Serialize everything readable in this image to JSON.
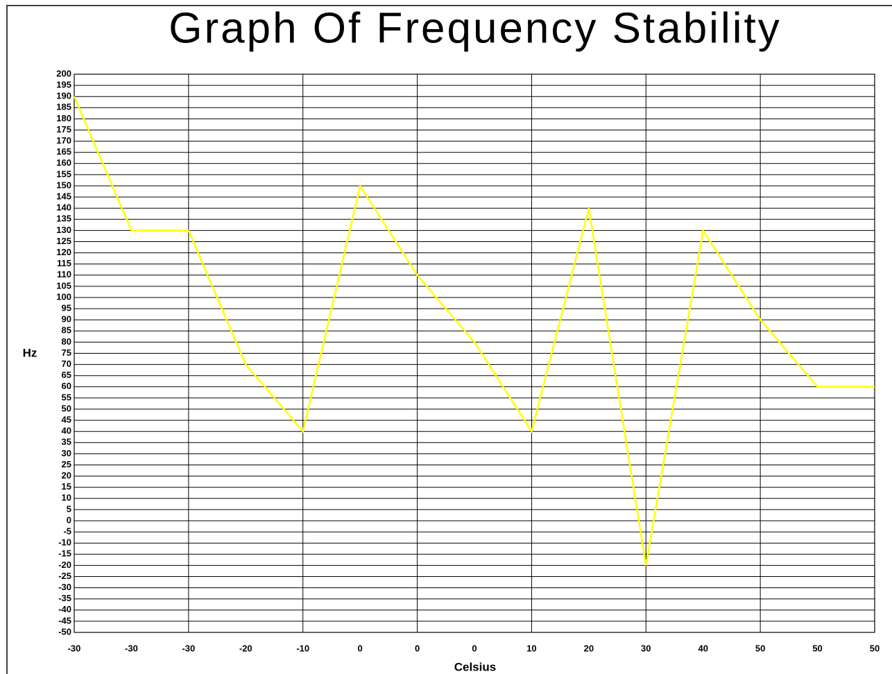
{
  "chart_data": {
    "type": "line",
    "title": "Graph Of Frequency Stability",
    "x_label": "Celsius",
    "y_label": "Hz",
    "categories": [
      "-30",
      "-30",
      "-30",
      "-20",
      "-10",
      "0",
      "0",
      "0",
      "10",
      "20",
      "30",
      "40",
      "50",
      "50",
      "50"
    ],
    "series": [
      {
        "color": "#ffff00",
        "values": [
          190,
          130,
          130,
          70,
          40,
          150,
          110,
          80,
          40,
          140,
          -20,
          130,
          90,
          60,
          60
        ]
      }
    ],
    "ylim": [
      -50,
      200
    ],
    "yticks": [
      -50,
      -45,
      -40,
      -35,
      -30,
      -25,
      -20,
      -15,
      -10,
      -5,
      0,
      5,
      10,
      15,
      20,
      25,
      30,
      35,
      40,
      45,
      50,
      55,
      60,
      65,
      70,
      75,
      80,
      85,
      90,
      95,
      100,
      105,
      110,
      115,
      120,
      125,
      130,
      135,
      140,
      145,
      150,
      155,
      160,
      165,
      170,
      175,
      180,
      185,
      190,
      195,
      200
    ],
    "grid": true
  }
}
